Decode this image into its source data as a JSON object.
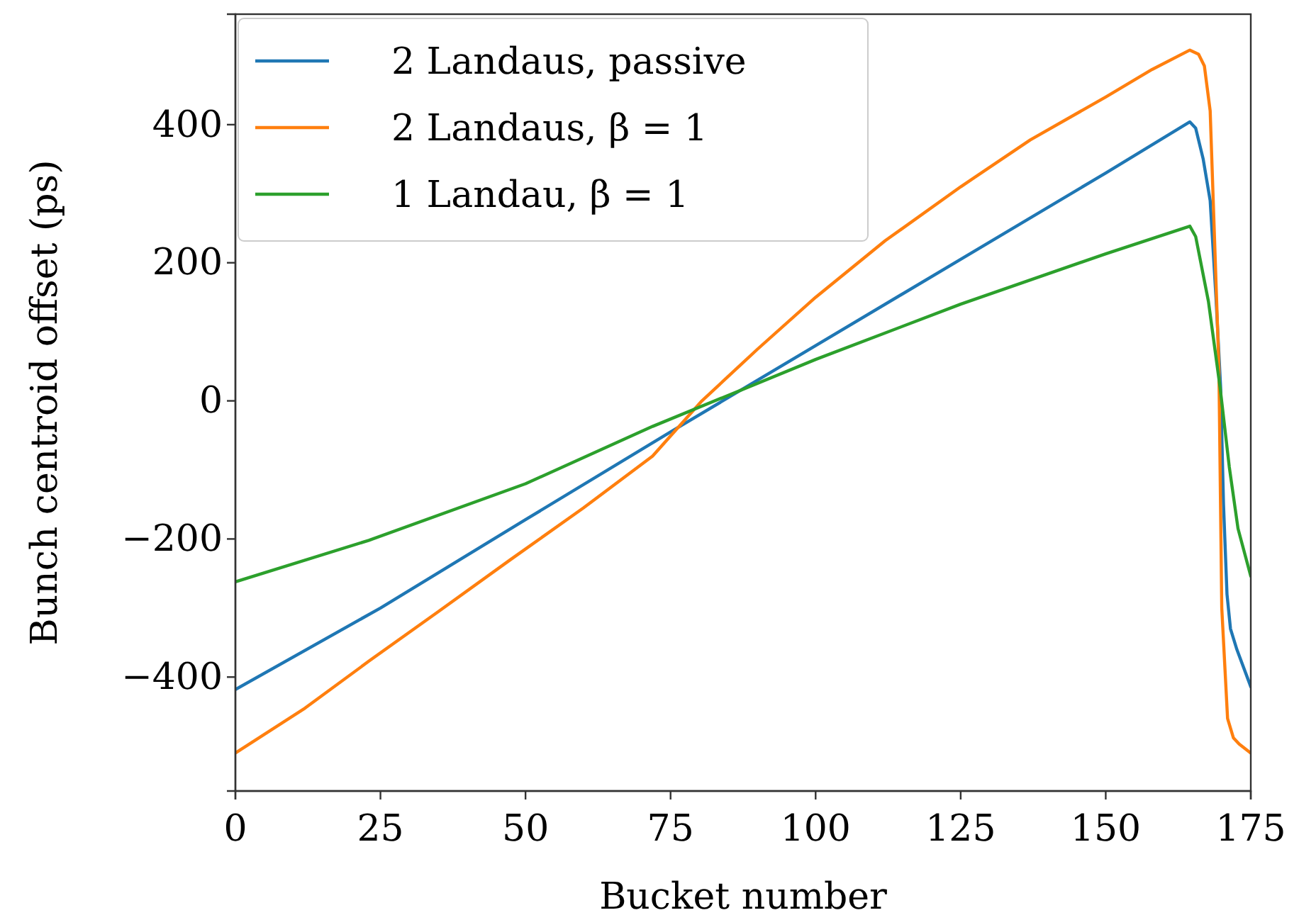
{
  "chart_data": {
    "type": "line",
    "xlabel": "Bucket number",
    "ylabel": "Bunch centroid offset (ps)",
    "xlim": [
      0,
      175
    ],
    "ylim": [
      -565,
      560
    ],
    "xticks": [
      0,
      25,
      50,
      75,
      100,
      125,
      150,
      175
    ],
    "yticks": [
      -400,
      -200,
      0,
      200,
      400
    ],
    "grid": false,
    "legend": "top left",
    "line_style": "solid",
    "marker": "none",
    "series": [
      {
        "name": "2 Landaus, passive",
        "color": "#1f77b4",
        "x": [
          0,
          25,
          50,
          75,
          100,
          125,
          150,
          164.5,
          165.5,
          166.8,
          168,
          169,
          169.8,
          170.3,
          170.9,
          171.5,
          172.6,
          175
        ],
        "values": [
          -418,
          -300,
          -172,
          -45,
          80,
          205,
          330,
          404,
          395,
          350,
          290,
          150,
          20,
          -150,
          -280,
          -330,
          -360,
          -414
        ]
      },
      {
        "name": "2 Landaus, β = 1",
        "color": "#ff7f0e",
        "x": [
          0,
          12,
          23,
          35,
          47.4,
          60,
          71.9,
          80.4,
          90,
          100,
          112,
          125,
          137,
          150,
          158,
          164.5,
          166,
          167,
          168,
          169.5,
          170,
          171,
          172,
          173,
          175
        ],
        "values": [
          -510,
          -445,
          -377,
          -305,
          -230,
          -155,
          -80,
          0,
          75,
          150,
          232,
          310,
          378,
          440,
          480,
          508,
          502,
          485,
          420,
          50,
          -300,
          -460,
          -488,
          -497,
          -510
        ]
      },
      {
        "name": "1 Landau, β = 1",
        "color": "#2ca02c",
        "x": [
          0,
          23,
          50,
          71.9,
          100,
          125,
          150,
          164.5,
          165.5,
          167.7,
          169.7,
          171.3,
          172.8,
          175
        ],
        "values": [
          -262,
          -202,
          -120,
          -37,
          60,
          140,
          213,
          253,
          238,
          144,
          20,
          -96,
          -185,
          -254
        ]
      }
    ]
  }
}
